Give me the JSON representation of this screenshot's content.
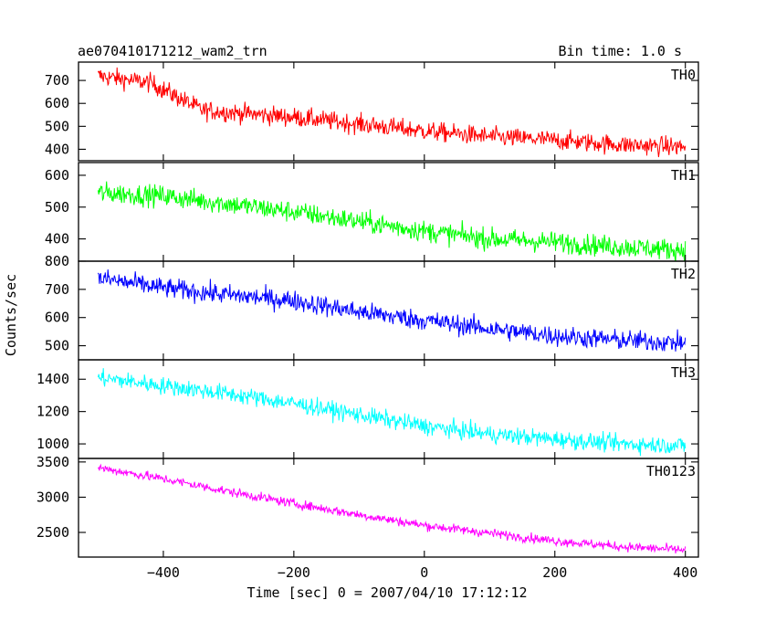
{
  "chart_data": {
    "type": "line",
    "title": "ae070410171212_wam2_trn",
    "bin_time_label": "Bin time: 1.0 s",
    "xlabel": "Time [sec] 0 = 2007/04/10 17:12:12",
    "ylabel": "Counts/sec",
    "xlim": [
      -530,
      420
    ],
    "x_ticks": [
      -400,
      -200,
      0,
      200,
      400
    ],
    "x_range": [
      -500,
      400
    ],
    "panels": [
      {
        "name": "TH0",
        "color": "#ff0000",
        "ylim": [
          350,
          780
        ],
        "y_ticks": [
          400,
          500,
          600,
          700
        ],
        "noise": 35,
        "trend": [
          [
            -500,
            720
          ],
          [
            -420,
            690
          ],
          [
            -340,
            570
          ],
          [
            -200,
            540
          ],
          [
            -100,
            510
          ],
          [
            0,
            480
          ],
          [
            100,
            455
          ],
          [
            200,
            440
          ],
          [
            300,
            420
          ],
          [
            400,
            410
          ]
        ]
      },
      {
        "name": "TH1",
        "color": "#00ff00",
        "ylim": [
          330,
          640
        ],
        "y_ticks": [
          400,
          500,
          600
        ],
        "noise": 28,
        "trend": [
          [
            -500,
            545
          ],
          [
            -400,
            535
          ],
          [
            -300,
            510
          ],
          [
            -200,
            485
          ],
          [
            -100,
            455
          ],
          [
            0,
            425
          ],
          [
            100,
            400
          ],
          [
            200,
            390
          ],
          [
            300,
            375
          ],
          [
            400,
            365
          ]
        ]
      },
      {
        "name": "TH2",
        "color": "#0000ff",
        "ylim": [
          450,
          800
        ],
        "y_ticks": [
          500,
          600,
          700,
          800
        ],
        "noise": 30,
        "trend": [
          [
            -500,
            740
          ],
          [
            -400,
            705
          ],
          [
            -300,
            680
          ],
          [
            -200,
            660
          ],
          [
            -100,
            620
          ],
          [
            0,
            590
          ],
          [
            100,
            560
          ],
          [
            200,
            535
          ],
          [
            300,
            520
          ],
          [
            400,
            510
          ]
        ]
      },
      {
        "name": "TH3",
        "color": "#00ffff",
        "ylim": [
          910,
          1520
        ],
        "y_ticks": [
          1000,
          1200,
          1400
        ],
        "noise": 45,
        "trend": [
          [
            -500,
            1410
          ],
          [
            -400,
            1360
          ],
          [
            -300,
            1310
          ],
          [
            -200,
            1250
          ],
          [
            -100,
            1180
          ],
          [
            0,
            1110
          ],
          [
            100,
            1060
          ],
          [
            200,
            1030
          ],
          [
            300,
            1000
          ],
          [
            400,
            990
          ]
        ]
      },
      {
        "name": "TH0123",
        "color": "#ff00ff",
        "ylim": [
          2150,
          3550
        ],
        "y_ticks": [
          2500,
          3000,
          3500
        ],
        "noise": 55,
        "trend": [
          [
            -500,
            3420
          ],
          [
            -400,
            3260
          ],
          [
            -300,
            3080
          ],
          [
            -200,
            2910
          ],
          [
            -100,
            2750
          ],
          [
            0,
            2600
          ],
          [
            100,
            2490
          ],
          [
            200,
            2380
          ],
          [
            300,
            2300
          ],
          [
            400,
            2250
          ]
        ]
      }
    ]
  }
}
